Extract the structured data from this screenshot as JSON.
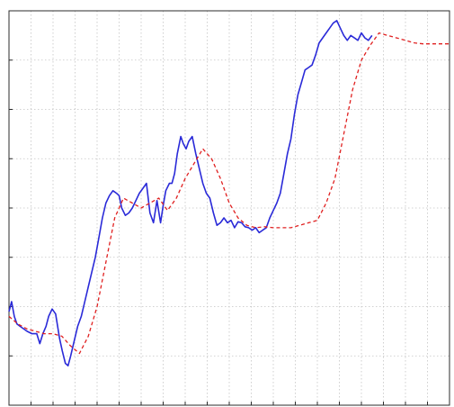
{
  "chart_data": {
    "type": "line",
    "title": "",
    "xlabel": "",
    "ylabel": "",
    "xlim": [
      0,
      100
    ],
    "ylim": [
      0,
      8
    ],
    "grid": true,
    "x_ticks": [
      0,
      5,
      10,
      15,
      20,
      25,
      30,
      35,
      40,
      45,
      50,
      55,
      60,
      65,
      70,
      75,
      80,
      85,
      90,
      95,
      100
    ],
    "y_ticks": [
      0,
      1,
      2,
      3,
      4,
      5,
      6,
      7,
      8
    ],
    "series": [
      {
        "color": "#2a2ad8",
        "style": "solid",
        "x": [
          0,
          0.6,
          1.2,
          1.8,
          2.5,
          3.3,
          4.1,
          5.2,
          6.3,
          7.0,
          7.7,
          8.4,
          9.0,
          9.8,
          10.6,
          11.5,
          12.1,
          12.8,
          13.4,
          14.0,
          14.8,
          15.6,
          16.4,
          17.2,
          18.0,
          18.8,
          19.6,
          20.4,
          21.2,
          22.0,
          22.8,
          23.6,
          24.4,
          25.0,
          25.6,
          26.4,
          27.2,
          28.0,
          28.8,
          29.6,
          30.4,
          31.2,
          32.0,
          32.8,
          33.6,
          34.4,
          35.0,
          35.6,
          36.4,
          37.0,
          37.6,
          38.2,
          39.0,
          39.6,
          40.2,
          40.8,
          41.6,
          42.4,
          43.2,
          44.0,
          44.8,
          45.6,
          46.4,
          47.2,
          48.0,
          48.8,
          49.6,
          50.4,
          51.2,
          52.0,
          52.8,
          53.6,
          54.4,
          55.2,
          56.0,
          56.8,
          57.6,
          58.4,
          59.2,
          60.0,
          60.8,
          61.6,
          62.4,
          63.2,
          64.0,
          64.8,
          65.6,
          66.4,
          67.2,
          68.0,
          68.8,
          69.6,
          70.4,
          71.2,
          72.0,
          72.8,
          73.6,
          74.4,
          75.2,
          76.0,
          76.8,
          77.6,
          78.4,
          79.2,
          80.0,
          80.8,
          81.6,
          82.4
        ],
        "y": [
          1.9,
          2.1,
          1.8,
          1.65,
          1.6,
          1.55,
          1.5,
          1.45,
          1.45,
          1.25,
          1.45,
          1.6,
          1.8,
          1.95,
          1.85,
          1.35,
          1.1,
          0.85,
          0.8,
          1.0,
          1.3,
          1.6,
          1.8,
          2.1,
          2.4,
          2.7,
          3.0,
          3.4,
          3.8,
          4.1,
          4.25,
          4.35,
          4.3,
          4.25,
          4.0,
          3.85,
          3.9,
          4.0,
          4.15,
          4.3,
          4.4,
          4.5,
          3.9,
          3.7,
          4.15,
          3.7,
          4.05,
          4.35,
          4.5,
          4.5,
          4.7,
          5.1,
          5.45,
          5.3,
          5.2,
          5.35,
          5.45,
          5.1,
          4.8,
          4.5,
          4.3,
          4.2,
          3.9,
          3.65,
          3.7,
          3.8,
          3.7,
          3.75,
          3.6,
          3.72,
          3.7,
          3.62,
          3.6,
          3.55,
          3.6,
          3.5,
          3.55,
          3.6,
          3.8,
          3.95,
          4.1,
          4.3,
          4.7,
          5.1,
          5.4,
          5.9,
          6.3,
          6.55,
          6.8,
          6.85,
          6.9,
          7.1,
          7.35,
          7.45,
          7.55,
          7.65,
          7.75,
          7.8,
          7.65,
          7.5,
          7.4,
          7.5,
          7.45,
          7.4,
          7.55,
          7.45,
          7.4,
          7.5
        ]
      },
      {
        "color": "#e02020",
        "style": "dashed",
        "x": [
          0,
          2,
          4,
          6,
          8,
          10,
          12,
          14,
          16,
          18,
          20,
          22,
          24,
          26,
          28,
          30,
          32,
          34,
          36,
          38,
          40,
          42,
          44,
          46,
          48,
          50,
          52,
          54,
          56,
          58,
          60,
          62,
          64,
          66,
          68,
          70,
          72,
          74,
          76,
          78,
          80,
          82,
          84,
          86,
          88,
          90,
          92,
          94,
          96,
          97,
          98,
          99,
          100
        ],
        "y": [
          1.8,
          1.65,
          1.55,
          1.5,
          1.45,
          1.45,
          1.4,
          1.2,
          1.05,
          1.4,
          2.0,
          2.9,
          3.8,
          4.2,
          4.1,
          4.0,
          4.1,
          4.2,
          3.95,
          4.2,
          4.6,
          4.9,
          5.2,
          5.0,
          4.6,
          4.1,
          3.8,
          3.65,
          3.6,
          3.62,
          3.6,
          3.6,
          3.6,
          3.65,
          3.7,
          3.75,
          4.1,
          4.6,
          5.5,
          6.4,
          7.0,
          7.3,
          7.55,
          7.5,
          7.45,
          7.4,
          7.35,
          7.33,
          7.33,
          7.33,
          7.33,
          7.33,
          7.33
        ]
      }
    ]
  }
}
